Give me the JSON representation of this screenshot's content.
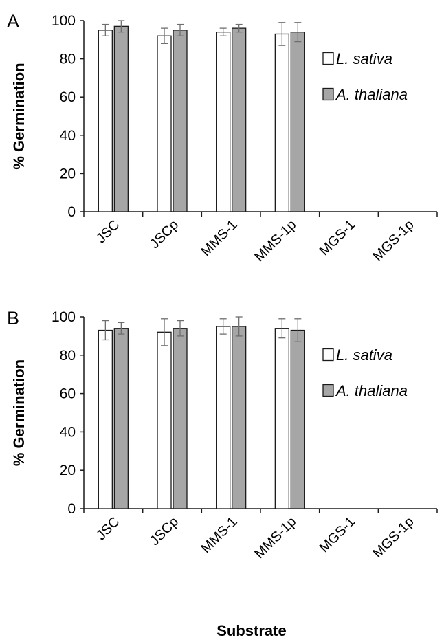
{
  "colors": {
    "lsativa_fill": "#ffffff",
    "athaliana_fill": "#a6a6a6",
    "bar_stroke": "#1a1a1a",
    "errorbar": "#6e6e6e",
    "axis": "#1a1a1a"
  },
  "xlabel": "Substrate",
  "chart_data": [
    {
      "panel": "A",
      "type": "bar",
      "categories": [
        "JSC",
        "JSCp",
        "MMS-1",
        "MMS-1p",
        "MGS-1",
        "MGS-1p"
      ],
      "ylabel": "% Germination",
      "ylim": [
        0,
        100
      ],
      "yticks": [
        0,
        20,
        40,
        60,
        80,
        100
      ],
      "legend_position": "right",
      "series": [
        {
          "name": "L. sativa",
          "values": [
            95,
            92,
            94,
            93,
            0,
            0
          ],
          "errors": [
            3,
            4,
            2,
            6,
            0,
            0
          ]
        },
        {
          "name": "A. thaliana",
          "values": [
            97,
            95,
            96,
            94,
            0,
            0
          ],
          "errors": [
            3,
            3,
            2,
            5,
            0,
            0
          ]
        }
      ]
    },
    {
      "panel": "B",
      "type": "bar",
      "categories": [
        "JSC",
        "JSCp",
        "MMS-1",
        "MMS-1p",
        "MGS-1",
        "MGS-1p"
      ],
      "ylabel": "% Germination",
      "ylim": [
        0,
        100
      ],
      "yticks": [
        0,
        20,
        40,
        60,
        80,
        100
      ],
      "legend_position": "right",
      "series": [
        {
          "name": "L. sativa",
          "values": [
            93,
            92,
            95,
            94,
            0,
            0
          ],
          "errors": [
            5,
            7,
            4,
            5,
            0,
            0
          ]
        },
        {
          "name": "A. thaliana",
          "values": [
            94,
            94,
            95,
            93,
            0,
            0
          ],
          "errors": [
            3,
            4,
            5,
            6,
            0,
            0
          ]
        }
      ]
    }
  ]
}
